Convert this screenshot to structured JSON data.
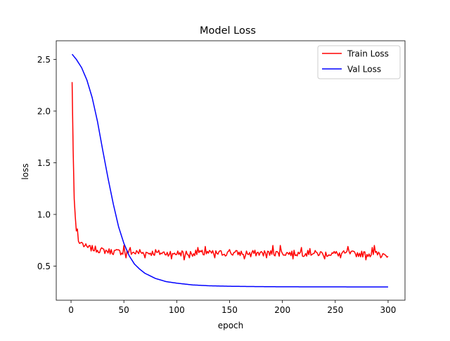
{
  "chart_data": {
    "type": "line",
    "title": "Model Loss",
    "xlabel": "epoch",
    "ylabel": "loss",
    "xlim": [
      -14,
      316
    ],
    "ylim": [
      0.17,
      2.68
    ],
    "xticks": [
      0,
      50,
      100,
      150,
      200,
      250,
      300
    ],
    "yticks": [
      0.5,
      1.0,
      1.5,
      2.0,
      2.5
    ],
    "ytick_labels": [
      "0.5",
      "1.0",
      "1.5",
      "2.0",
      "2.5"
    ],
    "grid": false,
    "legend_position": "top-right",
    "series": [
      {
        "name": "Train Loss",
        "color": "#ff0000",
        "x_start": 1,
        "x_step": 1,
        "keypoints": [
          [
            1,
            2.28
          ],
          [
            2,
            1.62
          ],
          [
            3,
            1.15
          ],
          [
            4,
            0.98
          ],
          [
            5,
            0.84
          ],
          [
            6,
            0.86
          ],
          [
            7,
            0.74
          ],
          [
            8,
            0.72
          ],
          [
            10,
            0.73
          ],
          [
            12,
            0.7
          ],
          [
            15,
            0.68
          ],
          [
            20,
            0.67
          ],
          [
            30,
            0.65
          ],
          [
            40,
            0.64
          ],
          [
            60,
            0.63
          ],
          [
            100,
            0.625
          ],
          [
            200,
            0.625
          ],
          [
            300,
            0.615
          ]
        ],
        "noise_amplitude": 0.03,
        "spikes": [
          [
            50,
            0.7
          ],
          [
            52,
            0.58
          ],
          [
            56,
            0.68
          ],
          [
            65,
            0.66
          ],
          [
            70,
            0.58
          ],
          [
            80,
            0.66
          ],
          [
            95,
            0.57
          ],
          [
            107,
            0.56
          ],
          [
            112,
            0.58
          ],
          [
            120,
            0.68
          ],
          [
            127,
            0.69
          ],
          [
            136,
            0.58
          ],
          [
            150,
            0.66
          ],
          [
            164,
            0.57
          ],
          [
            170,
            0.59
          ],
          [
            185,
            0.58
          ],
          [
            191,
            0.7
          ],
          [
            198,
            0.7
          ],
          [
            210,
            0.57
          ],
          [
            218,
            0.68
          ],
          [
            226,
            0.67
          ],
          [
            240,
            0.57
          ],
          [
            255,
            0.58
          ],
          [
            262,
            0.69
          ],
          [
            279,
            0.56
          ],
          [
            285,
            0.68
          ],
          [
            287,
            0.7
          ],
          [
            293,
            0.58
          ],
          [
            297,
            0.61
          ],
          [
            301,
            0.6
          ]
        ]
      },
      {
        "name": "Val Loss",
        "color": "#0000ff",
        "x_start": 1,
        "x_step": 1,
        "keypoints": [
          [
            1,
            2.55
          ],
          [
            5,
            2.5
          ],
          [
            10,
            2.42
          ],
          [
            15,
            2.3
          ],
          [
            20,
            2.13
          ],
          [
            25,
            1.9
          ],
          [
            30,
            1.62
          ],
          [
            35,
            1.35
          ],
          [
            40,
            1.1
          ],
          [
            45,
            0.88
          ],
          [
            50,
            0.72
          ],
          [
            55,
            0.6
          ],
          [
            60,
            0.52
          ],
          [
            65,
            0.47
          ],
          [
            70,
            0.43
          ],
          [
            80,
            0.38
          ],
          [
            90,
            0.35
          ],
          [
            100,
            0.335
          ],
          [
            115,
            0.318
          ],
          [
            130,
            0.31
          ],
          [
            150,
            0.305
          ],
          [
            175,
            0.302
          ],
          [
            200,
            0.3
          ],
          [
            250,
            0.299
          ],
          [
            300,
            0.298
          ]
        ]
      }
    ]
  }
}
